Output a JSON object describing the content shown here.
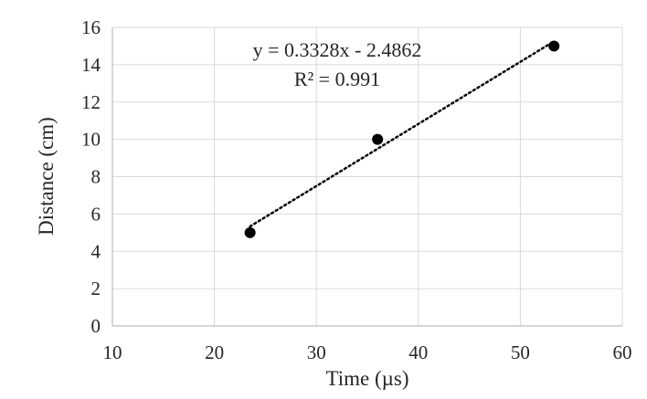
{
  "chart_data": {
    "type": "scatter",
    "title": "",
    "xlabel": "Time (µs)",
    "ylabel": "Distance (cm)",
    "xlim": [
      10,
      60
    ],
    "ylim": [
      0,
      16
    ],
    "x_ticks": [
      10,
      20,
      30,
      40,
      50,
      60
    ],
    "y_ticks": [
      0,
      2,
      4,
      6,
      8,
      10,
      12,
      14,
      16
    ],
    "grid": true,
    "legend": "none",
    "series": [
      {
        "points": [
          {
            "x": 23.5,
            "y": 5
          },
          {
            "x": 36.0,
            "y": 10
          },
          {
            "x": 53.3,
            "y": 15
          }
        ],
        "color": "#000000",
        "marker": "circle"
      }
    ],
    "trendline": {
      "type": "linear",
      "slope": 0.3328,
      "intercept": -2.4862,
      "x_range": [
        23.5,
        53.3
      ],
      "style": "dotted",
      "color": "#000000"
    },
    "annotations": {
      "equation": "y = 0.3328x - 2.4862",
      "r_squared": "R² = 0.991"
    },
    "colors": {
      "grid": "#d9d9d9",
      "axis": "#bfbfbf",
      "text": "#262626"
    }
  }
}
